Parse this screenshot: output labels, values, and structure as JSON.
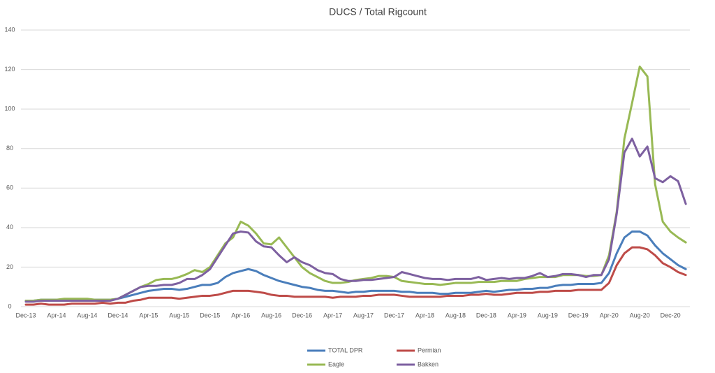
{
  "chart_data": {
    "type": "line",
    "title": "DUCS / Total Rigcount",
    "categories": [
      "Dec-13",
      null,
      null,
      null,
      "Apr-14",
      null,
      null,
      null,
      "Aug-14",
      null,
      null,
      null,
      "Dec-14",
      null,
      null,
      null,
      "Apr-15",
      null,
      null,
      null,
      "Aug-15",
      null,
      null,
      null,
      "Dec-15",
      null,
      null,
      null,
      "Apr-16",
      null,
      null,
      null,
      "Aug-16",
      null,
      null,
      null,
      "Dec-16",
      null,
      null,
      null,
      "Apr-17",
      null,
      null,
      null,
      "Aug-17",
      null,
      null,
      null,
      "Dec-17",
      null,
      null,
      null,
      "Apr-18",
      null,
      null,
      null,
      "Aug-18",
      null,
      null,
      null,
      "Dec-18",
      null,
      null,
      null,
      "Apr-19",
      null,
      null,
      null,
      "Aug-19",
      null,
      null,
      null,
      "Dec-19",
      null,
      null,
      null,
      "Apr-20",
      null,
      null,
      null,
      "Aug-20",
      null,
      null,
      null,
      "Dec-20",
      null,
      null
    ],
    "series": [
      {
        "name": "TOTAL DPR",
        "color": "#4a7ebb",
        "values": [
          3,
          3,
          3.5,
          3.5,
          3.5,
          3.5,
          3.5,
          3.5,
          3.5,
          3.5,
          3.5,
          3.5,
          4,
          5,
          6,
          7,
          8,
          8.5,
          9,
          9,
          8.5,
          9,
          10,
          11,
          11,
          12,
          15,
          17,
          18,
          19,
          18,
          16,
          14.5,
          13,
          12,
          11,
          10,
          9.5,
          8.5,
          8,
          8,
          7.5,
          7,
          7.5,
          7.5,
          8,
          8,
          8,
          8,
          7.5,
          7.5,
          7,
          7,
          7,
          6.5,
          6.5,
          7,
          7,
          7,
          7.5,
          8,
          7.5,
          8,
          8.5,
          8.5,
          9,
          9,
          9.5,
          9.5,
          10.5,
          11,
          11,
          11.5,
          11.5,
          11.5,
          12,
          17,
          27,
          35,
          38,
          38,
          36,
          31,
          27,
          24,
          21,
          19
        ]
      },
      {
        "name": "Permian",
        "color": "#be4b48",
        "values": [
          1,
          1,
          1.5,
          1,
          1,
          1,
          1.5,
          1.5,
          1.5,
          1.5,
          2,
          1.5,
          2,
          2,
          3,
          3.5,
          4.5,
          4.5,
          4.5,
          4.5,
          4,
          4.5,
          5,
          5.5,
          5.5,
          6,
          7,
          8,
          8,
          8,
          7.5,
          7,
          6,
          5.5,
          5.5,
          5,
          5,
          5,
          5,
          5,
          4.5,
          5,
          5,
          5,
          5.5,
          5.5,
          6,
          6,
          6,
          5.5,
          5,
          5,
          5,
          5,
          5,
          5.5,
          5.5,
          5.5,
          6,
          6,
          6.5,
          6,
          6,
          6.5,
          7,
          7,
          7,
          7.5,
          7.5,
          8,
          8,
          8,
          8.5,
          8.5,
          8.5,
          8.5,
          12,
          21,
          27,
          30,
          30,
          29,
          26,
          22,
          20,
          17.5,
          16
        ]
      },
      {
        "name": "Eagle",
        "color": "#98b954",
        "values": [
          3,
          3,
          3.5,
          3.5,
          3.5,
          4,
          4,
          4,
          4,
          3.5,
          3.5,
          3.5,
          4,
          6,
          8,
          10,
          11.5,
          13.5,
          14,
          14,
          15,
          16.5,
          18.5,
          17.5,
          20,
          26,
          32,
          35,
          43,
          41,
          37,
          32,
          31.5,
          35,
          30,
          25,
          20,
          17,
          15,
          13,
          12,
          12,
          12.5,
          13.5,
          14,
          14.5,
          15.5,
          15.5,
          15,
          13,
          12.5,
          12,
          11.5,
          11.5,
          11,
          11.5,
          12,
          12,
          12,
          12.5,
          12.5,
          12.5,
          13,
          13,
          13,
          14,
          14.5,
          15,
          15,
          15,
          16,
          16,
          16,
          15.5,
          15.5,
          16,
          26,
          48,
          85,
          103,
          121.5,
          116.5,
          62,
          43,
          38,
          35,
          32.5
        ]
      },
      {
        "name": "Bakken",
        "color": "#7d60a0",
        "values": [
          2.5,
          2.5,
          3,
          3,
          3,
          3,
          3,
          3,
          3,
          3,
          3,
          3,
          4,
          6,
          8,
          10,
          10.5,
          10.5,
          11,
          11,
          12,
          14,
          14,
          16,
          19,
          25,
          31,
          37,
          38,
          37.5,
          33,
          30.5,
          30,
          26,
          22.5,
          25,
          22.5,
          21,
          18.5,
          17,
          16.5,
          14,
          13,
          13,
          13.5,
          13.5,
          14,
          14.5,
          15,
          17.5,
          16.5,
          15.5,
          14.5,
          14,
          14,
          13.5,
          14,
          14,
          14,
          15,
          13.5,
          14,
          14.5,
          14,
          14.5,
          14.5,
          15.5,
          17,
          15,
          15.5,
          16.5,
          16.5,
          16,
          15,
          16,
          16,
          24,
          47,
          78,
          85,
          76,
          81,
          65,
          63,
          66,
          63.5,
          52
        ]
      }
    ],
    "ylim": [
      0,
      140
    ],
    "yticks": [
      0,
      20,
      40,
      60,
      80,
      100,
      120,
      140
    ],
    "grid": true,
    "legend": "bottom"
  }
}
